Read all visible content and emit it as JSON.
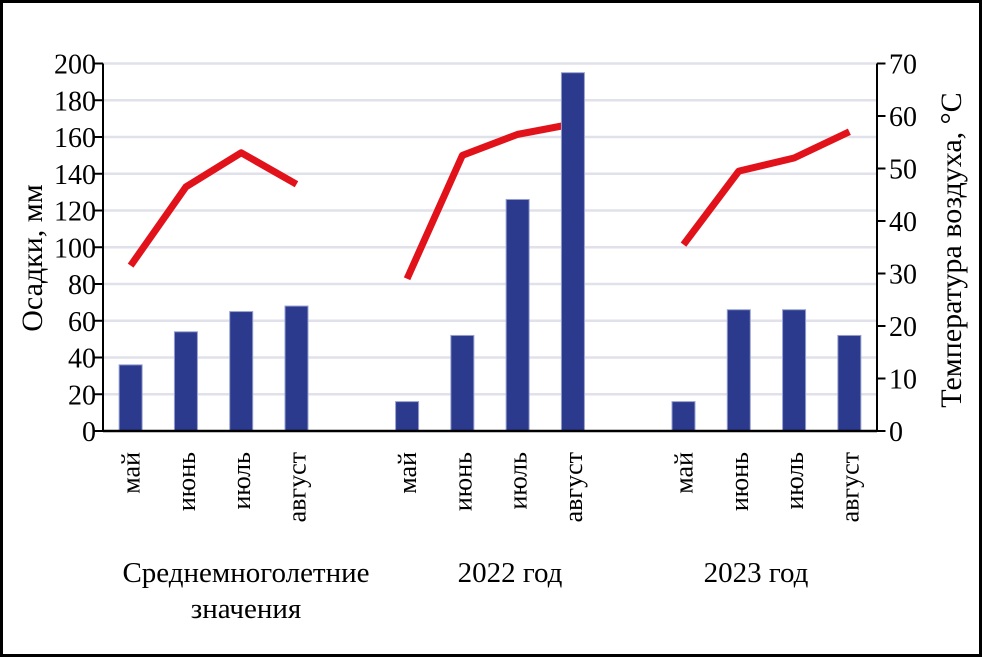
{
  "figure": {
    "background": "#ffffff",
    "border_color": "#000000"
  },
  "chart_data": {
    "type": "bar",
    "subtype": "combo-bar-line",
    "title": "",
    "grid": true,
    "legend": "none",
    "left_axis": {
      "label": "Осадки, мм",
      "min": 0,
      "max": 200,
      "step": 20,
      "tick_labels": [
        "0",
        "20",
        "40",
        "60",
        "80",
        "100",
        "120",
        "140",
        "160",
        "180",
        "200"
      ]
    },
    "right_axis": {
      "label": "Температура воздуха, °C",
      "min": 0,
      "max": 70,
      "step": 10,
      "tick_labels": [
        "0",
        "10",
        "20",
        "30",
        "40",
        "50",
        "60",
        "70"
      ]
    },
    "months": [
      "май",
      "июнь",
      "июль",
      "август"
    ],
    "groups": [
      {
        "label": "Среднемноголетние значения",
        "label_lines": [
          "Среднемноголетние",
          "значения"
        ],
        "precipitation_mm": [
          36,
          54,
          65,
          68
        ],
        "temperature_c": [
          31.5,
          46.5,
          53,
          47
        ]
      },
      {
        "label": "2022 год",
        "label_lines": [
          "2022 год"
        ],
        "precipitation_mm": [
          16,
          52,
          126,
          195
        ],
        "temperature_c": [
          29,
          52.5,
          56.5,
          58.5
        ]
      },
      {
        "label": "2023 год",
        "label_lines": [
          "2023 год"
        ],
        "precipitation_mm": [
          16,
          66,
          66,
          52
        ],
        "temperature_c": [
          35.5,
          49.5,
          52,
          57
        ]
      }
    ],
    "series": [
      {
        "name": "Осадки, мм",
        "type": "bar",
        "color": "#2b3a8d"
      },
      {
        "name": "Температура воздуха, °C",
        "type": "line",
        "color": "#e2121b"
      }
    ],
    "colors": {
      "bar": "#2b3a8d",
      "bar_edge": "#96a0d0",
      "line": "#e2121b",
      "grid": "#e0e1ea",
      "axis": "#000000"
    }
  }
}
